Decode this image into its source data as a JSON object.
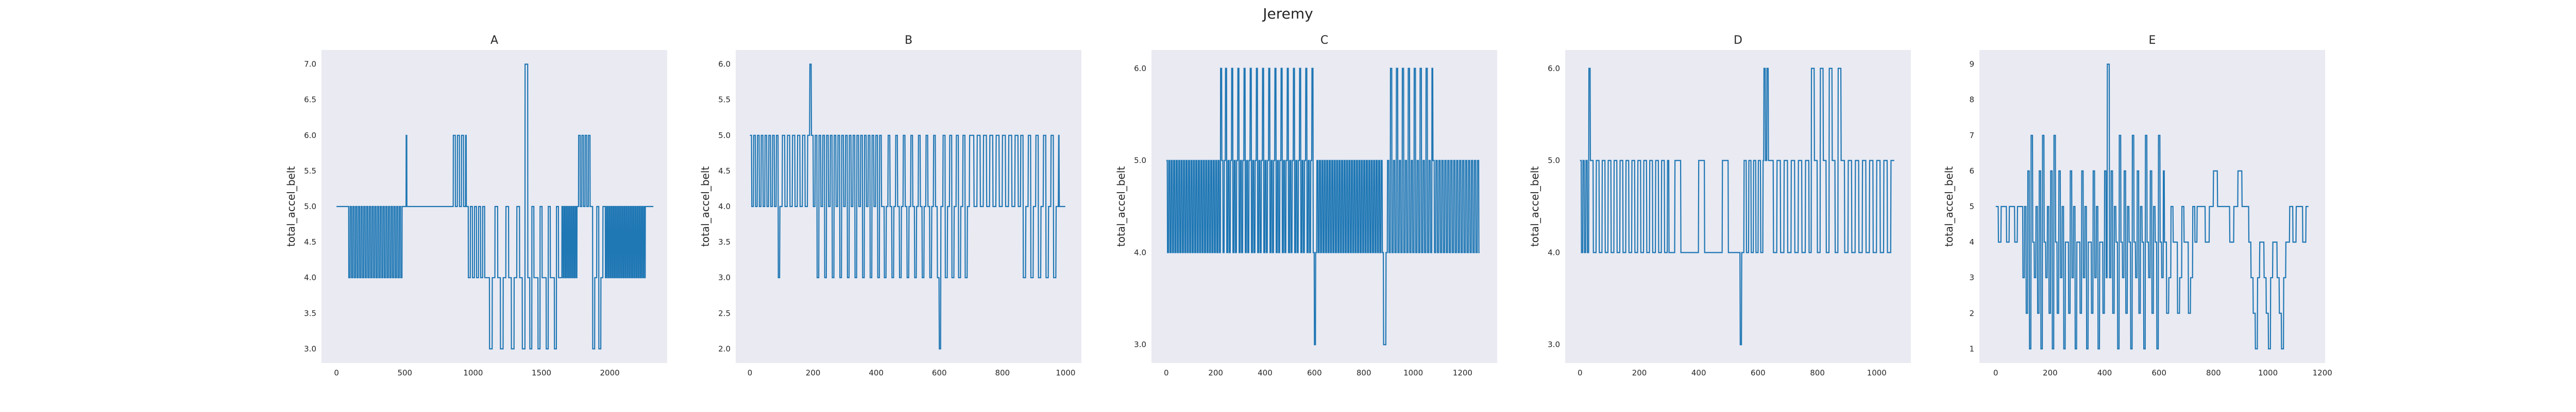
{
  "figure_title": "Jeremy",
  "colors": {
    "line": "#1f77b4",
    "panel_bg": "#eaeaf2",
    "grid": "#ffffff",
    "text": "#262626"
  },
  "chart_data": [
    {
      "type": "line",
      "title": "A",
      "xlabel": "",
      "ylabel": "total_accel_belt",
      "xlim": [
        -110,
        2420
      ],
      "ylim": [
        2.8,
        7.2
      ],
      "xticks": [
        0,
        500,
        1000,
        1500,
        2000
      ],
      "xtick_labels": [
        "0",
        "500",
        "1000",
        "1500",
        "2000"
      ],
      "yticks": [
        3.0,
        3.5,
        4.0,
        4.5,
        5.0,
        5.5,
        6.0,
        6.5,
        7.0
      ],
      "ytick_labels": [
        "3.0",
        "3.5",
        "4.0",
        "4.5",
        "5.0",
        "5.5",
        "6.0",
        "6.5",
        "7.0"
      ],
      "n": 2320,
      "segments": [
        {
          "x0": 0,
          "x1": 80,
          "pattern": "const",
          "v": 5
        },
        {
          "x0": 80,
          "x1": 490,
          "pattern": "alt",
          "values": [
            5,
            4
          ],
          "step": 10
        },
        {
          "x0": 490,
          "x1": 510,
          "pattern": "const",
          "v": 5
        },
        {
          "x0": 510,
          "x1": 515,
          "pattern": "const",
          "v": 6
        },
        {
          "x0": 515,
          "x1": 840,
          "pattern": "const",
          "v": 5
        },
        {
          "x0": 840,
          "x1": 950,
          "pattern": "alt",
          "values": [
            5,
            6
          ],
          "step": 15
        },
        {
          "x0": 950,
          "x1": 1100,
          "pattern": "alt",
          "values": [
            5,
            4
          ],
          "step": 15
        },
        {
          "x0": 1100,
          "x1": 1380,
          "pattern": "alt",
          "values": [
            4,
            3,
            4,
            5
          ],
          "step": 20
        },
        {
          "x0": 1380,
          "x1": 1400,
          "pattern": "const",
          "v": 7
        },
        {
          "x0": 1400,
          "x1": 1650,
          "pattern": "alt",
          "values": [
            4,
            3,
            5,
            4
          ],
          "step": 15
        },
        {
          "x0": 1650,
          "x1": 1760,
          "pattern": "alt",
          "values": [
            5,
            4
          ],
          "step": 8
        },
        {
          "x0": 1760,
          "x1": 1860,
          "pattern": "alt",
          "values": [
            5,
            6
          ],
          "step": 12
        },
        {
          "x0": 1860,
          "x1": 1960,
          "pattern": "alt",
          "values": [
            5,
            3,
            4
          ],
          "step": 15
        },
        {
          "x0": 1960,
          "x1": 2260,
          "pattern": "alt",
          "values": [
            5,
            4
          ],
          "step": 8
        },
        {
          "x0": 2260,
          "x1": 2320,
          "pattern": "const",
          "v": 5
        }
      ]
    },
    {
      "type": "line",
      "title": "B",
      "xlabel": "",
      "ylabel": "total_accel_belt",
      "xlim": [
        -45,
        1050
      ],
      "ylim": [
        1.8,
        6.2
      ],
      "xticks": [
        0,
        200,
        400,
        600,
        800,
        1000
      ],
      "xtick_labels": [
        "0",
        "200",
        "400",
        "600",
        "800",
        "1000"
      ],
      "yticks": [
        2.0,
        2.5,
        3.0,
        3.5,
        4.0,
        4.5,
        5.0,
        5.5,
        6.0
      ],
      "ytick_labels": [
        "2.0",
        "2.5",
        "3.0",
        "3.5",
        "4.0",
        "4.5",
        "5.0",
        "5.5",
        "6.0"
      ],
      "n": 1000,
      "segments": [
        {
          "x0": 0,
          "x1": 90,
          "pattern": "alt",
          "values": [
            5,
            4
          ],
          "step": 6
        },
        {
          "x0": 90,
          "x1": 95,
          "pattern": "const",
          "v": 3
        },
        {
          "x0": 95,
          "x1": 190,
          "pattern": "alt",
          "values": [
            4,
            5
          ],
          "step": 8
        },
        {
          "x0": 190,
          "x1": 195,
          "pattern": "const",
          "v": 6
        },
        {
          "x0": 195,
          "x1": 420,
          "pattern": "alt",
          "values": [
            5,
            4,
            5,
            3
          ],
          "step": 6
        },
        {
          "x0": 420,
          "x1": 600,
          "pattern": "alt",
          "values": [
            4,
            3,
            4,
            5
          ],
          "step": 6
        },
        {
          "x0": 600,
          "x1": 605,
          "pattern": "const",
          "v": 2
        },
        {
          "x0": 605,
          "x1": 700,
          "pattern": "alt",
          "values": [
            4,
            5,
            3
          ],
          "step": 7
        },
        {
          "x0": 700,
          "x1": 850,
          "pattern": "alt",
          "values": [
            5,
            4
          ],
          "step": 10
        },
        {
          "x0": 850,
          "x1": 980,
          "pattern": "alt",
          "values": [
            4,
            5,
            3
          ],
          "step": 8
        },
        {
          "x0": 980,
          "x1": 1000,
          "pattern": "const",
          "v": 4
        }
      ]
    },
    {
      "type": "line",
      "title": "C",
      "xlabel": "",
      "ylabel": "total_accel_belt",
      "xlim": [
        -60,
        1340
      ],
      "ylim": [
        2.8,
        6.2
      ],
      "xticks": [
        0,
        200,
        400,
        600,
        800,
        1000,
        1200
      ],
      "xtick_labels": [
        "0",
        "200",
        "400",
        "600",
        "800",
        "1000",
        "1200"
      ],
      "yticks": [
        3.0,
        4.0,
        5.0,
        6.0
      ],
      "ytick_labels": [
        "3.0",
        "4.0",
        "5.0",
        "6.0"
      ],
      "n": 1270,
      "segments": [
        {
          "x0": 0,
          "x1": 220,
          "pattern": "alt",
          "values": [
            5,
            4
          ],
          "step": 5
        },
        {
          "x0": 220,
          "x1": 225,
          "pattern": "const",
          "v": 6
        },
        {
          "x0": 225,
          "x1": 600,
          "pattern": "alt",
          "values": [
            5,
            4,
            5,
            6,
            4
          ],
          "step": 5
        },
        {
          "x0": 600,
          "x1": 605,
          "pattern": "const",
          "v": 3
        },
        {
          "x0": 605,
          "x1": 880,
          "pattern": "alt",
          "values": [
            4,
            5
          ],
          "step": 5
        },
        {
          "x0": 880,
          "x1": 890,
          "pattern": "const",
          "v": 3
        },
        {
          "x0": 890,
          "x1": 1080,
          "pattern": "alt",
          "values": [
            4,
            5,
            4,
            6
          ],
          "step": 6
        },
        {
          "x0": 1080,
          "x1": 1270,
          "pattern": "alt",
          "values": [
            5,
            4
          ],
          "step": 6
        }
      ]
    },
    {
      "type": "line",
      "title": "D",
      "xlabel": "",
      "ylabel": "total_accel_belt",
      "xlim": [
        -50,
        1115
      ],
      "ylim": [
        2.8,
        6.2
      ],
      "xticks": [
        0,
        200,
        400,
        600,
        800,
        1000
      ],
      "xtick_labels": [
        "0",
        "200",
        "400",
        "600",
        "800",
        "1000"
      ],
      "yticks": [
        3.0,
        4.0,
        5.0,
        6.0
      ],
      "ytick_labels": [
        "3.0",
        "4.0",
        "5.0",
        "6.0"
      ],
      "n": 1060,
      "segments": [
        {
          "x0": 0,
          "x1": 30,
          "pattern": "alt",
          "values": [
            5,
            4
          ],
          "step": 5
        },
        {
          "x0": 30,
          "x1": 35,
          "pattern": "const",
          "v": 6
        },
        {
          "x0": 35,
          "x1": 300,
          "pattern": "alt",
          "values": [
            5,
            4
          ],
          "step": 10
        },
        {
          "x0": 300,
          "x1": 540,
          "pattern": "alt",
          "values": [
            4,
            5,
            4,
            4
          ],
          "step": 20
        },
        {
          "x0": 540,
          "x1": 545,
          "pattern": "const",
          "v": 3
        },
        {
          "x0": 545,
          "x1": 620,
          "pattern": "alt",
          "values": [
            4,
            5
          ],
          "step": 8
        },
        {
          "x0": 620,
          "x1": 640,
          "pattern": "alt",
          "values": [
            6,
            5
          ],
          "step": 5
        },
        {
          "x0": 640,
          "x1": 780,
          "pattern": "alt",
          "values": [
            5,
            4
          ],
          "step": 12
        },
        {
          "x0": 780,
          "x1": 880,
          "pattern": "alt",
          "values": [
            6,
            5,
            4
          ],
          "step": 10
        },
        {
          "x0": 880,
          "x1": 1060,
          "pattern": "alt",
          "values": [
            5,
            4
          ],
          "step": 12
        }
      ]
    },
    {
      "type": "line",
      "title": "E",
      "xlabel": "",
      "ylabel": "total_accel_belt",
      "xlim": [
        -60,
        1210
      ],
      "ylim": [
        0.6,
        9.4
      ],
      "xticks": [
        0,
        200,
        400,
        600,
        800,
        1000,
        1200
      ],
      "xtick_labels": [
        "0",
        "200",
        "400",
        "600",
        "800",
        "1000",
        "1200"
      ],
      "yticks": [
        1,
        2,
        3,
        4,
        5,
        6,
        7,
        8,
        9
      ],
      "ytick_labels": [
        "1",
        "2",
        "3",
        "4",
        "5",
        "6",
        "7",
        "8",
        "9"
      ],
      "n": 1150,
      "segments": [
        {
          "x0": 0,
          "x1": 100,
          "pattern": "alt",
          "values": [
            5,
            4,
            5
          ],
          "step": 10
        },
        {
          "x0": 100,
          "x1": 220,
          "pattern": "alt",
          "values": [
            3,
            5,
            2,
            6,
            1,
            7,
            4
          ],
          "step": 6
        },
        {
          "x0": 220,
          "x1": 410,
          "pattern": "alt",
          "values": [
            4,
            2,
            6,
            3,
            5,
            1,
            4
          ],
          "step": 6
        },
        {
          "x0": 410,
          "x1": 418,
          "pattern": "const",
          "v": 9
        },
        {
          "x0": 418,
          "x1": 620,
          "pattern": "alt",
          "values": [
            3,
            6,
            2,
            5,
            4,
            1,
            7,
            4
          ],
          "step": 6
        },
        {
          "x0": 620,
          "x1": 740,
          "pattern": "alt",
          "values": [
            4,
            2,
            3,
            5,
            4
          ],
          "step": 8
        },
        {
          "x0": 740,
          "x1": 930,
          "pattern": "alt",
          "values": [
            5,
            5,
            4,
            5,
            6,
            5
          ],
          "step": 15
        },
        {
          "x0": 930,
          "x1": 1080,
          "pattern": "alt",
          "values": [
            4,
            3,
            2,
            1,
            3,
            4
          ],
          "step": 8
        },
        {
          "x0": 1080,
          "x1": 1150,
          "pattern": "alt",
          "values": [
            5,
            4,
            5
          ],
          "step": 12
        }
      ]
    }
  ]
}
